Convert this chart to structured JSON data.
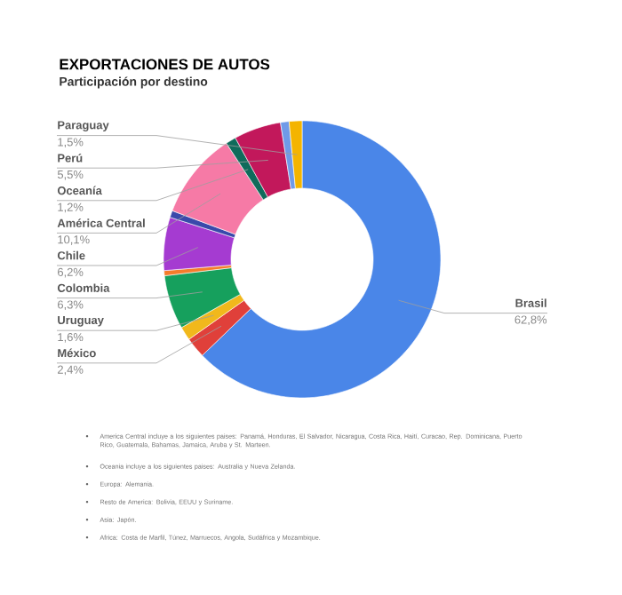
{
  "chart_data": {
    "type": "donut",
    "title": "EXPORTACIONES DE AUTOS",
    "subtitle": "Participación por destino",
    "categories": [
      "Brasil",
      "México",
      "Uruguay",
      "Colombia",
      null,
      "Chile",
      null,
      "América Central",
      "Oceanía",
      "Perú",
      null,
      "Paraguay"
    ],
    "values": [
      62.8,
      2.4,
      1.6,
      6.3,
      0.6,
      6.2,
      0.8,
      10.1,
      1.2,
      5.5,
      1.0,
      1.5
    ],
    "value_labels": [
      "62,8%",
      "2,4%",
      "1,6%",
      "6,3%",
      null,
      "6,2%",
      null,
      "10,1%",
      "1,2%",
      "5,5%",
      null,
      "1,5%"
    ],
    "colors": [
      "#4a86e8",
      "#e0403a",
      "#f1b81c",
      "#16a05d",
      "#f57c2b",
      "#a53bd1",
      "#3949ab",
      "#f67aa6",
      "#0f6b5b",
      "#c2185b",
      "#6f9ae8",
      "#f4b400"
    ],
    "annotations": [
      "America Central incluye a los siguientes paises: Panamá, Honduras, El Salvador, Nicaragua, Costa Rica, Haití, Curacao, Rep. Dominicana, Puerto Rico, Guatemala, Bahamas, Jamaica, Aruba y St. Marteen.",
      "Oceania incluye a los siguientes paises: Australia y Nueva Zelanda.",
      "Europa: Alemania.",
      "Resto de America: Bolivia, EEUU y Suriname.",
      "Asia: Japón.",
      "Africa: Costa de Marfil, Túnez, Marruecos, Angola, Sudáfrica y Mozambique."
    ]
  }
}
